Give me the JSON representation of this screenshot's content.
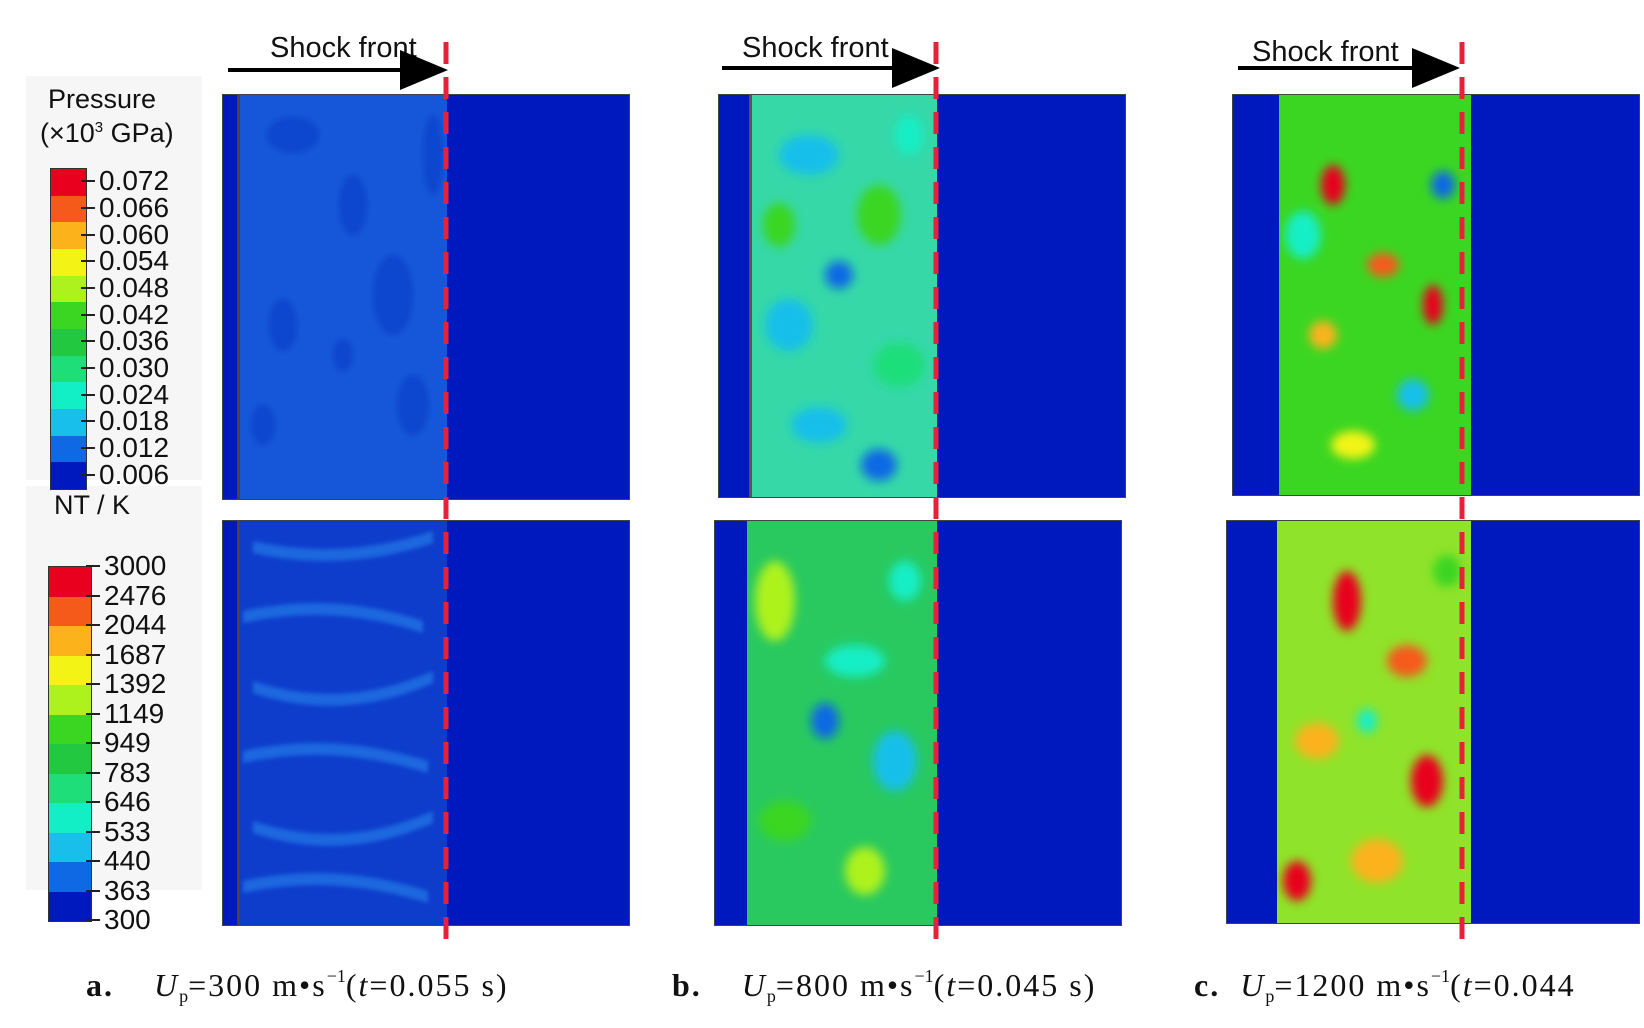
{
  "pressure_legend": {
    "title_line1": "Pressure",
    "title_line2": "(×10",
    "title_sup": "3",
    "title_line2_tail": " GPa)",
    "labels": [
      "0.072",
      "0.066",
      "0.060",
      "0.054",
      "0.048",
      "0.042",
      "0.036",
      "0.030",
      "0.024",
      "0.018",
      "0.012",
      "0.006"
    ],
    "colors": [
      "#e8001e",
      "#f65a1a",
      "#fbb21b",
      "#f3f416",
      "#aef21d",
      "#3bd622",
      "#22c83f",
      "#1ede7a",
      "#12eec6",
      "#17bfea",
      "#1069e4",
      "#0019bf"
    ]
  },
  "temperature_legend": {
    "title": "NT / K",
    "labels": [
      "3000",
      "2476",
      "2044",
      "1687",
      "1392",
      "1149",
      "949",
      "783",
      "646",
      "533",
      "440",
      "363",
      "300"
    ],
    "colors": [
      "#e8001e",
      "#f65a1a",
      "#fbb21b",
      "#f3f416",
      "#aef21d",
      "#3bd622",
      "#22c83f",
      "#1ede7a",
      "#12eec6",
      "#17bfea",
      "#1069e4",
      "#0019bf"
    ]
  },
  "shock_label": "Shock front",
  "panels": [
    {
      "letter": "a.",
      "up_symbol": "U",
      "up_sub": "p",
      "up_value": "=300 m•s",
      "exp": "−1",
      "paren_open": "(",
      "t_symbol": "t",
      "t_value": "=0.055 s)"
    },
    {
      "letter": "b.",
      "up_symbol": "U",
      "up_sub": "p",
      "up_value": "=800 m•s",
      "exp": "−1",
      "paren_open": "(",
      "t_symbol": "t",
      "t_value": "=0.045 s)"
    },
    {
      "letter": "c.",
      "up_symbol": "U",
      "up_sub": "p",
      "up_value": "=1200 m•s",
      "exp": "−1",
      "paren_open": "(",
      "t_symbol": "t",
      "t_value": "=0.044"
    }
  ],
  "colors": {
    "background_field": "#0019bf",
    "shock_dashed_line": "#e8213a",
    "arrow": "#000000"
  }
}
